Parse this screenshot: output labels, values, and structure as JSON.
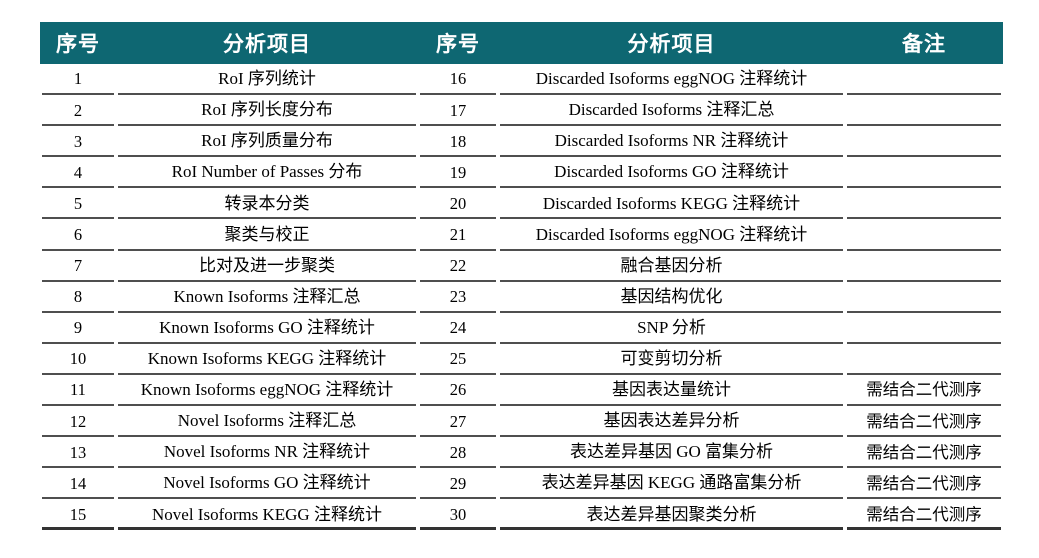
{
  "table": {
    "headers": [
      "序号",
      "分析项目",
      "序号",
      "分析项目",
      "备注"
    ],
    "rows": [
      {
        "no_left": "1",
        "item_left": "RoI 序列统计",
        "no_right": "16",
        "item_right": "Discarded Isoforms eggNOG 注释统计",
        "remark": ""
      },
      {
        "no_left": "2",
        "item_left": "RoI 序列长度分布",
        "no_right": "17",
        "item_right": "Discarded Isoforms 注释汇总",
        "remark": ""
      },
      {
        "no_left": "3",
        "item_left": "RoI 序列质量分布",
        "no_right": "18",
        "item_right": "Discarded Isoforms NR 注释统计",
        "remark": ""
      },
      {
        "no_left": "4",
        "item_left": "RoI Number of Passes 分布",
        "no_right": "19",
        "item_right": "Discarded Isoforms GO 注释统计",
        "remark": ""
      },
      {
        "no_left": "5",
        "item_left": "转录本分类",
        "no_right": "20",
        "item_right": "Discarded Isoforms KEGG 注释统计",
        "remark": ""
      },
      {
        "no_left": "6",
        "item_left": "聚类与校正",
        "no_right": "21",
        "item_right": "Discarded Isoforms eggNOG 注释统计",
        "remark": ""
      },
      {
        "no_left": "7",
        "item_left": "比对及进一步聚类",
        "no_right": "22",
        "item_right": "融合基因分析",
        "remark": ""
      },
      {
        "no_left": "8",
        "item_left": "Known Isoforms 注释汇总",
        "no_right": "23",
        "item_right": "基因结构优化",
        "remark": ""
      },
      {
        "no_left": "9",
        "item_left": "Known Isoforms GO 注释统计",
        "no_right": "24",
        "item_right": "SNP 分析",
        "remark": ""
      },
      {
        "no_left": "10",
        "item_left": "Known Isoforms KEGG 注释统计",
        "no_right": "25",
        "item_right": "可变剪切分析",
        "remark": ""
      },
      {
        "no_left": "11",
        "item_left": "Known Isoforms eggNOG 注释统计",
        "no_right": "26",
        "item_right": "基因表达量统计",
        "remark": "需结合二代测序"
      },
      {
        "no_left": "12",
        "item_left": "Novel Isoforms 注释汇总",
        "no_right": "27",
        "item_right": "基因表达差异分析",
        "remark": "需结合二代测序"
      },
      {
        "no_left": "13",
        "item_left": "Novel Isoforms NR 注释统计",
        "no_right": "28",
        "item_right": "表达差异基因 GO 富集分析",
        "remark": "需结合二代测序"
      },
      {
        "no_left": "14",
        "item_left": "Novel Isoforms GO 注释统计",
        "no_right": "29",
        "item_right": "表达差异基因 KEGG 通路富集分析",
        "remark": "需结合二代测序"
      },
      {
        "no_left": "15",
        "item_left": "Novel Isoforms KEGG 注释统计",
        "no_right": "30",
        "item_right": "表达差异基因聚类分析",
        "remark": "需结合二代测序"
      }
    ],
    "colors": {
      "header_bg": "#0e6772",
      "header_text": "#ffffff",
      "row_line": "#4f4f4f",
      "bottom_line": "#333333",
      "body_text": "#000000"
    }
  }
}
